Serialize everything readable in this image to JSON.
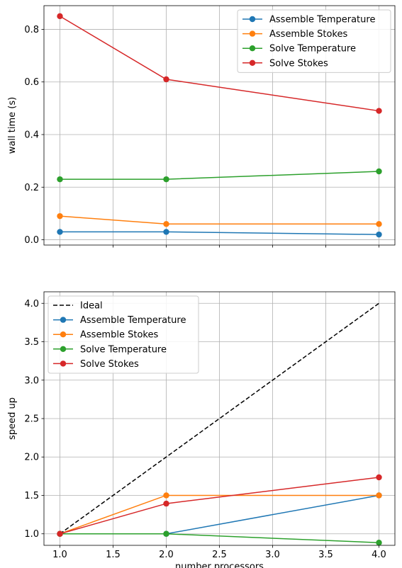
{
  "chart_data": [
    {
      "type": "line",
      "title": "",
      "xlabel": "",
      "ylabel": "wall time (s)",
      "x": [
        1,
        2,
        4
      ],
      "xlim": [
        0.85,
        4.15
      ],
      "ylim": [
        -0.02,
        0.89
      ],
      "xticks": [
        1.0,
        1.5,
        2.0,
        2.5,
        3.0,
        3.5,
        4.0
      ],
      "xtick_labels_visible": false,
      "yticks": [
        0.0,
        0.2,
        0.4,
        0.6,
        0.8
      ],
      "ytick_labels": [
        "0.0",
        "0.2",
        "0.4",
        "0.6",
        "0.8"
      ],
      "grid": true,
      "legend_position": "upper-right",
      "series": [
        {
          "name": "Assemble Temperature",
          "color": "#1f77b4",
          "marker": "circle",
          "values": [
            0.03,
            0.03,
            0.02
          ]
        },
        {
          "name": "Assemble Stokes",
          "color": "#ff7f0e",
          "marker": "circle",
          "values": [
            0.09,
            0.06,
            0.06
          ]
        },
        {
          "name": "Solve Temperature",
          "color": "#2ca02c",
          "marker": "circle",
          "values": [
            0.23,
            0.23,
            0.26
          ]
        },
        {
          "name": "Solve Stokes",
          "color": "#d62728",
          "marker": "circle",
          "values": [
            0.85,
            0.61,
            0.49
          ]
        }
      ]
    },
    {
      "type": "line",
      "title": "",
      "xlabel": "number processors",
      "ylabel": "speed up",
      "x": [
        1,
        2,
        4
      ],
      "xlim": [
        0.85,
        4.15
      ],
      "ylim": [
        0.85,
        4.15
      ],
      "xticks": [
        1.0,
        1.5,
        2.0,
        2.5,
        3.0,
        3.5,
        4.0
      ],
      "xtick_labels": [
        "1.0",
        "1.5",
        "2.0",
        "2.5",
        "3.0",
        "3.5",
        "4.0"
      ],
      "xtick_labels_visible": true,
      "yticks": [
        1.0,
        1.5,
        2.0,
        2.5,
        3.0,
        3.5,
        4.0
      ],
      "ytick_labels": [
        "1.0",
        "1.5",
        "2.0",
        "2.5",
        "3.0",
        "3.5",
        "4.0"
      ],
      "grid": true,
      "legend_position": "upper-left",
      "series": [
        {
          "name": "Ideal",
          "color": "#000000",
          "marker": "none",
          "dashed": true,
          "values": [
            1,
            2,
            4
          ]
        },
        {
          "name": "Assemble Temperature",
          "color": "#1f77b4",
          "marker": "circle",
          "values": [
            1.0,
            1.0,
            1.5
          ]
        },
        {
          "name": "Assemble Stokes",
          "color": "#ff7f0e",
          "marker": "circle",
          "values": [
            1.0,
            1.5,
            1.5
          ]
        },
        {
          "name": "Solve Temperature",
          "color": "#2ca02c",
          "marker": "circle",
          "values": [
            1.0,
            1.0,
            0.885
          ]
        },
        {
          "name": "Solve Stokes",
          "color": "#d62728",
          "marker": "circle",
          "values": [
            1.0,
            1.393,
            1.735
          ]
        }
      ]
    }
  ]
}
